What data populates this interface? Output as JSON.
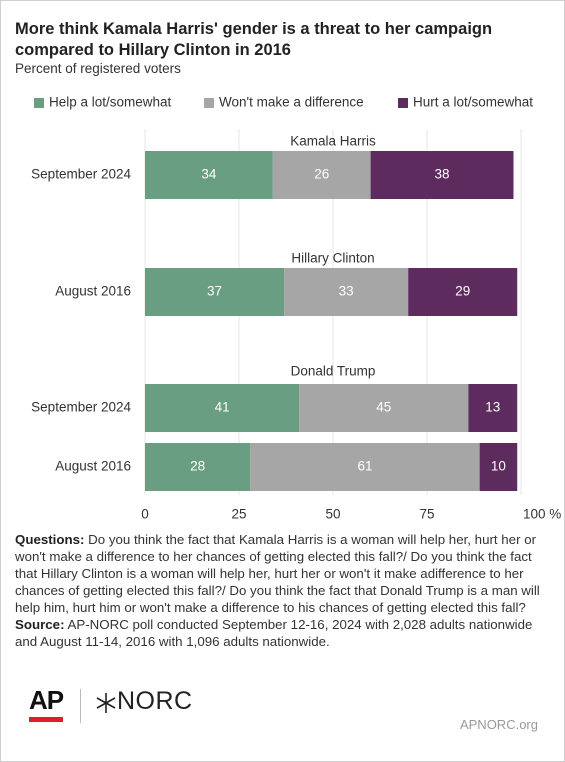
{
  "chart_data": {
    "type": "stacked_bar",
    "title": "More think Kamala Harris' gender is a threat to her campaign compared to Hillary Clinton in 2016",
    "subtitle": "Percent of registered voters",
    "groups": [
      {
        "name": "Kamala Harris",
        "categories": [
          "September 2024"
        ]
      },
      {
        "name": "Hillary Clinton",
        "categories": [
          "August 2016"
        ]
      },
      {
        "name": "Donald Trump",
        "categories": [
          "September 2024",
          "August 2016"
        ]
      }
    ],
    "series": [
      {
        "name": "Help a lot/somewhat",
        "color": "#6a9e82",
        "values": [
          34,
          37,
          41,
          28
        ]
      },
      {
        "name": "Won't make a difference",
        "color": "#a6a6a6",
        "values": [
          26,
          33,
          45,
          61
        ]
      },
      {
        "name": "Hurt a lot/somewhat",
        "color": "#5e2b5e",
        "values": [
          38,
          29,
          13,
          10
        ]
      }
    ],
    "xlim": [
      0,
      100
    ],
    "xticks": [
      0,
      25,
      50,
      75,
      {
        "value": 100,
        "label": "100 %"
      }
    ],
    "grid": true
  },
  "notes": {
    "questions_label": "Questions:",
    "questions": "Do you think the fact that Kamala Harris is a woman will help her, hurt her or won't make a difference to her chances of getting elected this fall?/ Do you think the fact that Hillary Clinton is a woman will help her, hurt her or won't it make adifference to her chances of getting elected this fall?/ Do you think the fact that Donald Trump is a man will help him, hurt him or won't make a difference to his chances of getting elected this fall?",
    "source_label": "Source:",
    "source": "AP-NORC poll conducted September 12-16, 2024 with 2,028 adults nationwide and August 11-14, 2016 with 1,096 adults nationwide."
  },
  "footer": {
    "logos": [
      "AP",
      "NORC"
    ],
    "url": "APNORC.org"
  }
}
